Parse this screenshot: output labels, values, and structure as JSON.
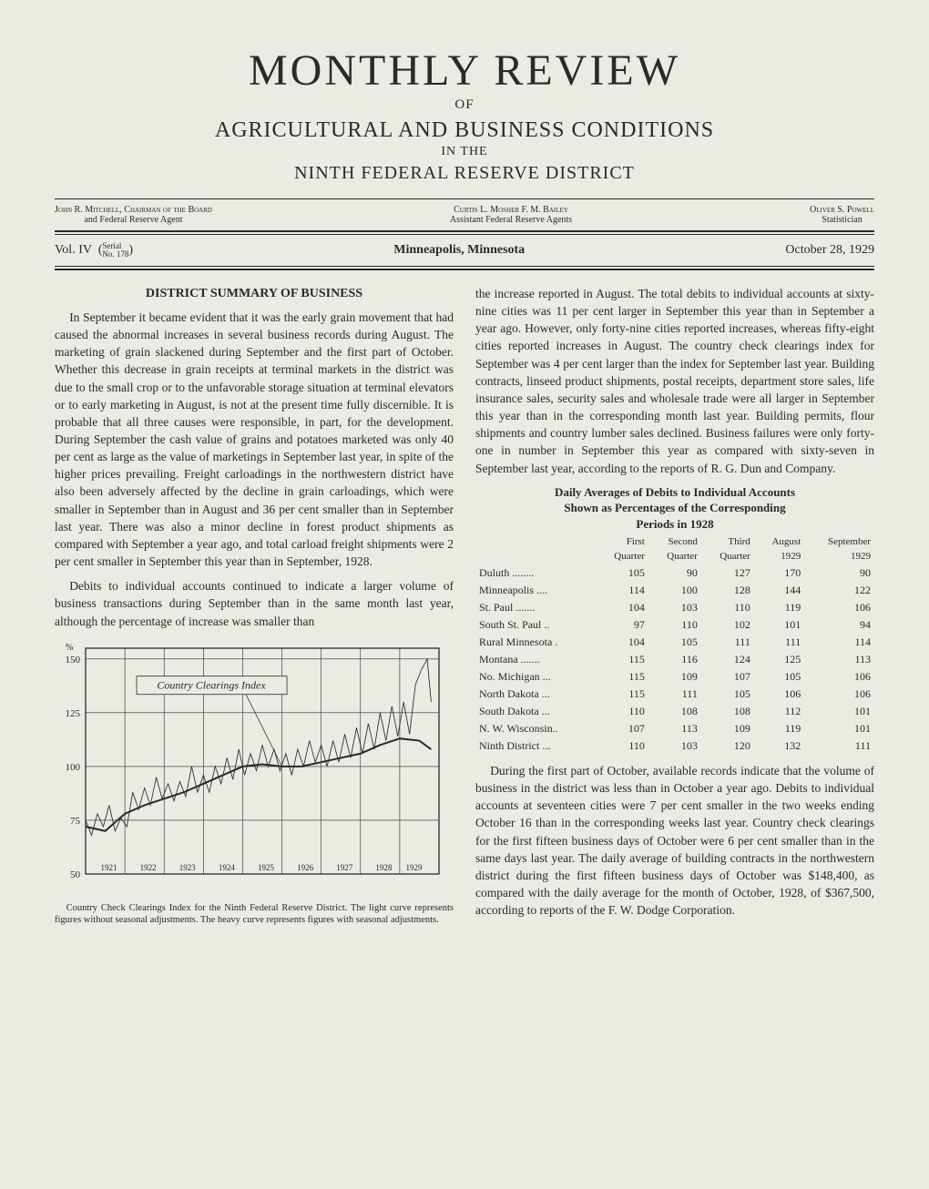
{
  "masthead": {
    "title": "MONTHLY REVIEW",
    "of": "OF",
    "sub1": "AGRICULTURAL AND BUSINESS CONDITIONS",
    "in": "IN THE",
    "sub2": "NINTH FEDERAL RESERVE DISTRICT"
  },
  "officials": {
    "left_name": "John R. Mitchell, Chairman of the Board",
    "left_title": "and Federal Reserve Agent",
    "center_names": "Curtis L. Mosher     F. M. Bailey",
    "center_title": "Assistant Federal Reserve Agents",
    "right_name": "Oliver S. Powell",
    "right_title": "Statistician"
  },
  "volume": {
    "vol": "Vol. IV",
    "serial_top": "Serial",
    "serial_bot": "No. 178",
    "city": "Minneapolis, Minnesota",
    "date": "October 28, 1929"
  },
  "left_col": {
    "section_head": "DISTRICT SUMMARY OF BUSINESS",
    "p1": "In September it became evident that it was the early grain movement that had caused the abnormal increases in several business records during August. The marketing of grain slackened during September and the first part of October. Whether this decrease in grain receipts at terminal markets in the district was due to the small crop or to the unfavorable storage situation at terminal elevators or to early marketing in August, is not at the present time fully discernible. It is probable that all three causes were responsible, in part, for the development. During September the cash value of grains and potatoes marketed was only 40 per cent as large as the value of marketings in September last year, in spite of the higher prices prevailing. Freight carloadings in the northwestern district have also been adversely affected by the decline in grain carloadings, which were smaller in September than in August and 36 per cent smaller than in September last year. There was also a minor decline in forest product shipments as compared with September a year ago, and total carload freight shipments were 2 per cent smaller in September this year than in September, 1928.",
    "p2": "Debits to individual accounts continued to indicate a larger volume of business transactions during September than in the same month last year, although the percentage of increase was smaller than"
  },
  "right_col": {
    "p1": "the increase reported in August. The total debits to individual accounts at sixty-nine cities was 11 per cent larger in September this year than in September a year ago. However, only forty-nine cities reported increases, whereas fifty-eight cities reported increases in August. The country check clearings index for September was 4 per cent larger than the index for September last year. Building contracts, linseed product shipments, postal receipts, department store sales, life insurance sales, security sales and wholesale trade were all larger in September this year than in the corresponding month last year. Building permits, flour shipments and country lumber sales declined. Business failures were only forty-one in number in September this year as compared with sixty-seven in September last year, according to the reports of R. G. Dun and Company.",
    "table_head_l1": "Daily Averages of Debits to Individual Accounts",
    "table_head_l2": "Shown as Percentages of the Corresponding",
    "table_head_l3": "Periods in 1928",
    "p2": "During the first part of October, available records indicate that the volume of business in the district was less than in October a year ago. Debits to individual accounts at seventeen cities were 7 per cent smaller in the two weeks ending October 16 than in the corresponding weeks last year. Country check clearings for the first fifteen business days of October were 6 per cent smaller than in the same days last year. The daily average of building contracts in the northwestern district during the first fifteen business days of October was $148,400, as compared with the daily average for the month of October, 1928, of $367,500, according to reports of the F. W. Dodge Corporation."
  },
  "debits_table": {
    "columns": [
      "",
      "First Quarter",
      "Second Quarter",
      "Third Quarter",
      "August 1929",
      "September 1929"
    ],
    "rows": [
      [
        "Duluth ........",
        "105",
        "90",
        "127",
        "170",
        "90"
      ],
      [
        "Minneapolis ....",
        "114",
        "100",
        "128",
        "144",
        "122"
      ],
      [
        "St. Paul .......",
        "104",
        "103",
        "110",
        "119",
        "106"
      ],
      [
        "South St. Paul ..",
        "97",
        "110",
        "102",
        "101",
        "94"
      ],
      [
        "Rural Minnesota .",
        "104",
        "105",
        "111",
        "111",
        "114"
      ],
      [
        "Montana .......",
        "115",
        "116",
        "124",
        "125",
        "113"
      ],
      [
        "No. Michigan ...",
        "115",
        "109",
        "107",
        "105",
        "106"
      ],
      [
        "North Dakota ...",
        "115",
        "111",
        "105",
        "106",
        "106"
      ],
      [
        "South Dakota ...",
        "110",
        "108",
        "108",
        "112",
        "101"
      ],
      [
        "N. W. Wisconsin..",
        "107",
        "113",
        "109",
        "119",
        "101"
      ],
      [
        "Ninth District ...",
        "110",
        "103",
        "120",
        "132",
        "111"
      ]
    ]
  },
  "chart": {
    "label": "Country Clearings Index",
    "caption": "Country Check Clearings Index for the Ninth Federal Reserve District. The light curve represents figures without seasonal adjustments. The heavy curve represents figures with seasonal adjustments.",
    "y_ticks": [
      "50",
      "75",
      "100",
      "125",
      "150"
    ],
    "y_label_pct": "%",
    "x_ticks": [
      "1921",
      "1922",
      "1923",
      "1924",
      "1925",
      "1926",
      "1927",
      "1928",
      "1929"
    ],
    "ylim": [
      50,
      155
    ],
    "xlim": [
      1921,
      1930
    ],
    "background": "#ebeae3",
    "grid_color": "#2a2a28",
    "heavy_color": "#2a2a28",
    "light_color": "#2a2a28",
    "heavy_width": 2.0,
    "light_width": 0.85,
    "heavy_series": [
      [
        1921.0,
        72
      ],
      [
        1921.5,
        70
      ],
      [
        1922.0,
        78
      ],
      [
        1922.5,
        82
      ],
      [
        1923.0,
        85
      ],
      [
        1923.5,
        88
      ],
      [
        1924.0,
        92
      ],
      [
        1924.5,
        96
      ],
      [
        1925.0,
        100
      ],
      [
        1925.5,
        101
      ],
      [
        1926.0,
        100
      ],
      [
        1926.5,
        100
      ],
      [
        1927.0,
        102
      ],
      [
        1927.5,
        104
      ],
      [
        1928.0,
        106
      ],
      [
        1928.5,
        110
      ],
      [
        1929.0,
        113
      ],
      [
        1929.5,
        112
      ],
      [
        1929.8,
        108
      ]
    ],
    "light_series": [
      [
        1921.0,
        75
      ],
      [
        1921.15,
        68
      ],
      [
        1921.3,
        78
      ],
      [
        1921.45,
        72
      ],
      [
        1921.6,
        82
      ],
      [
        1921.75,
        70
      ],
      [
        1921.9,
        76
      ],
      [
        1922.05,
        72
      ],
      [
        1922.2,
        88
      ],
      [
        1922.35,
        80
      ],
      [
        1922.5,
        90
      ],
      [
        1922.65,
        82
      ],
      [
        1922.8,
        95
      ],
      [
        1922.95,
        85
      ],
      [
        1923.1,
        92
      ],
      [
        1923.25,
        84
      ],
      [
        1923.4,
        93
      ],
      [
        1923.55,
        86
      ],
      [
        1923.7,
        100
      ],
      [
        1923.85,
        88
      ],
      [
        1924.0,
        96
      ],
      [
        1924.15,
        88
      ],
      [
        1924.3,
        100
      ],
      [
        1924.45,
        92
      ],
      [
        1924.6,
        104
      ],
      [
        1924.75,
        94
      ],
      [
        1924.9,
        108
      ],
      [
        1925.05,
        96
      ],
      [
        1925.2,
        106
      ],
      [
        1925.35,
        98
      ],
      [
        1925.5,
        110
      ],
      [
        1925.65,
        100
      ],
      [
        1925.8,
        108
      ],
      [
        1925.95,
        98
      ],
      [
        1926.1,
        106
      ],
      [
        1926.25,
        96
      ],
      [
        1926.4,
        108
      ],
      [
        1926.55,
        100
      ],
      [
        1926.7,
        112
      ],
      [
        1926.85,
        102
      ],
      [
        1927.0,
        110
      ],
      [
        1927.15,
        100
      ],
      [
        1927.3,
        112
      ],
      [
        1927.45,
        102
      ],
      [
        1927.6,
        115
      ],
      [
        1927.75,
        104
      ],
      [
        1927.9,
        118
      ],
      [
        1928.05,
        106
      ],
      [
        1928.2,
        120
      ],
      [
        1928.35,
        108
      ],
      [
        1928.5,
        125
      ],
      [
        1928.65,
        112
      ],
      [
        1928.8,
        128
      ],
      [
        1928.95,
        114
      ],
      [
        1929.1,
        130
      ],
      [
        1929.25,
        115
      ],
      [
        1929.4,
        138
      ],
      [
        1929.55,
        145
      ],
      [
        1929.7,
        150
      ],
      [
        1929.8,
        130
      ]
    ]
  }
}
